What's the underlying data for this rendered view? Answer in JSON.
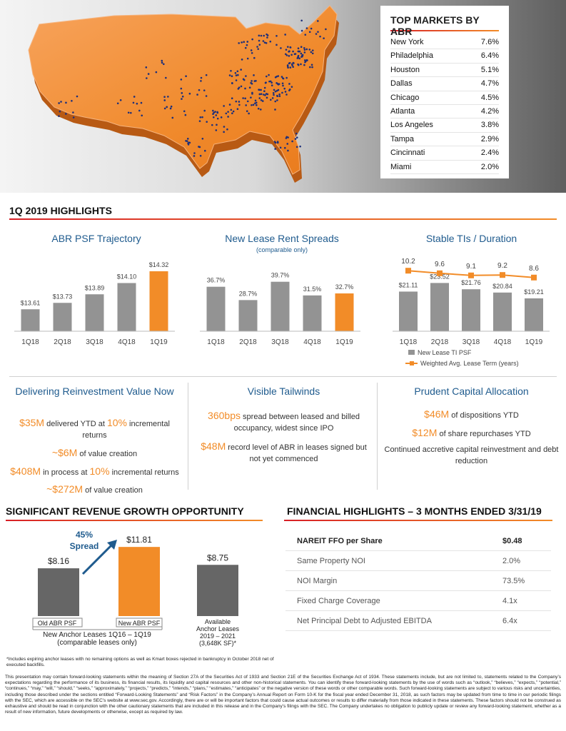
{
  "top_markets": {
    "title": "TOP MARKETS BY ABR",
    "rows": [
      {
        "market": "New York",
        "pct": "7.6%"
      },
      {
        "market": "Philadelphia",
        "pct": "6.4%"
      },
      {
        "market": "Houston",
        "pct": "5.1%"
      },
      {
        "market": "Dallas",
        "pct": "4.7%"
      },
      {
        "market": "Chicago",
        "pct": "4.5%"
      },
      {
        "market": "Atlanta",
        "pct": "4.2%"
      },
      {
        "market": "Los Angeles",
        "pct": "3.8%"
      },
      {
        "market": "Tampa",
        "pct": "2.9%"
      },
      {
        "market": "Cincinnati",
        "pct": "2.4%"
      },
      {
        "market": "Miami",
        "pct": "2.0%"
      }
    ]
  },
  "highlights": {
    "title": "1Q 2019 HIGHLIGHTS"
  },
  "chart_data": [
    {
      "type": "bar",
      "title": "ABR PSF Trajectory",
      "categories": [
        "1Q18",
        "2Q18",
        "3Q18",
        "4Q18",
        "1Q19"
      ],
      "values": [
        13.61,
        13.73,
        13.89,
        14.1,
        14.32
      ],
      "labels": [
        "$13.61",
        "$13.73",
        "$13.89",
        "$14.10",
        "$14.32"
      ],
      "highlight_index": 4,
      "ylim": [
        13.2,
        14.4
      ]
    },
    {
      "type": "bar",
      "title": "New Lease Rent Spreads",
      "subtitle": "(comparable only)",
      "categories": [
        "1Q18",
        "2Q18",
        "3Q18",
        "4Q18",
        "1Q19"
      ],
      "values": [
        36.7,
        28.7,
        39.7,
        31.5,
        32.7
      ],
      "labels": [
        "36.7%",
        "28.7%",
        "39.7%",
        "31.5%",
        "32.7%"
      ],
      "highlight_index": 4,
      "ylim": [
        10,
        40
      ]
    },
    {
      "type": "bar",
      "title": "Stable TIs / Duration",
      "categories": [
        "1Q18",
        "2Q18",
        "3Q18",
        "4Q18",
        "1Q19"
      ],
      "series": [
        {
          "name": "New Lease TI PSF",
          "type": "bar",
          "values": [
            21.11,
            23.52,
            21.76,
            20.84,
            19.21
          ],
          "labels": [
            "$21.11",
            "$23.52",
            "$21.76",
            "$20.84",
            "$19.21"
          ]
        },
        {
          "name": "Weighted Avg. Lease Term (years)",
          "type": "line",
          "values": [
            10.2,
            9.6,
            9.1,
            9.2,
            8.6
          ],
          "labels": [
            "10.2",
            "9.6",
            "9.1",
            "9.2",
            "8.6"
          ]
        }
      ]
    },
    {
      "type": "bar",
      "title": "SIGNIFICANT REVENUE GROWTH OPPORTUNITY",
      "categories": [
        "Old ABR PSF",
        "New ABR PSF",
        "Available Anchor Leases 2019 – 2021 (3,648K SF)*"
      ],
      "values": [
        8.16,
        11.81,
        8.75
      ],
      "labels": [
        "$8.16",
        "$11.81",
        "$8.75"
      ],
      "annotation": "45% Spread",
      "group_label": "New Anchor Leases 1Q16 – 1Q19 (comparable leases only)"
    }
  ],
  "colors": {
    "orange": "#f28c28",
    "gray": "#939393",
    "dark_gray": "#666666",
    "blue": "#1f5b8e",
    "red": "#d71f26"
  },
  "reinvestment": {
    "title": "Delivering Reinvestment Value Now",
    "s1_hl": "$35M",
    "s1_a": " delivered YTD at ",
    "s1_hl2": "10%",
    "s1_b": " incremental returns",
    "s2_hl": "~$6M",
    "s2_a": " of value creation",
    "s3_hl": "$408M",
    "s3_a": " in process at ",
    "s3_hl2": "10%",
    "s3_b": " incremental returns",
    "s4_hl": "~$272M",
    "s4_a": " of value creation"
  },
  "tailwinds": {
    "title": "Visible Tailwinds",
    "s1_hl": "360bps",
    "s1_a": " spread between leased and billed occupancy, widest since IPO",
    "s2_hl": "$48M",
    "s2_a": " record level of ABR in leases signed but not yet commenced"
  },
  "capital": {
    "title": "Prudent Capital Allocation",
    "s1_hl": "$46M",
    "s1_a": " of dispositions YTD",
    "s2_hl": "$12M",
    "s2_a": " of share repurchases YTD",
    "s3": "Continued accretive capital reinvestment and debt reduction"
  },
  "revenue": {
    "footnote": "*Includes expiring anchor leases with no remaining options as well as Kmart boxes rejected in bankruptcy in October 2018 net of executed backfills."
  },
  "financial": {
    "title": "FINANCIAL HIGHLIGHTS – 3 MONTHS ENDED 3/31/19",
    "rows": [
      {
        "label": "NAREIT FFO per Share",
        "value": "$0.48"
      },
      {
        "label": "Same Property NOI",
        "value": "2.0%"
      },
      {
        "label": "NOI Margin",
        "value": "73.5%"
      },
      {
        "label": "Fixed Charge Coverage",
        "value": "4.1x"
      },
      {
        "label": "Net Principal Debt to Adjusted EBITDA",
        "value": "6.4x"
      }
    ]
  },
  "disclaimer": "This presentation may contain forward-looking statements within the meaning of Section 27A of the Securities Act of 1933 and Section 21E of the Securities Exchange Act of 1934. These statements include, but are not limited to, statements related to the Company’s expectations regarding the performance of its business, its financial results, its liquidity and capital resources and other non-historical statements. You can identify these forward-looking statements by the use of words such as “outlook,” “believes,” “expects,” “potential,” “continues,” “may,” “will,” “should,” “seeks,” “approximately,” “projects,” “predicts,” “intends,” “plans,” “estimates,” “anticipates” or the negative version of these words or other comparable words. Such forward-looking statements are subject to various risks and uncertainties, including those described under the sections entitled “Forward-Looking Statements” and “Risk Factors” in the Company’s Annual Report on Form 10-K for the fiscal year ended December 31, 2018, as such factors may be updated from time to time in our periodic filings with the SEC, which are accessible on the SEC’s website at www.sec.gov. Accordingly, there are or will be important factors that could cause actual outcomes or results to differ materially from those indicated in these statements. These factors should not be construed as exhaustive and should be read in conjunction with the other cautionary statements that are included in this release and in the Company’s filings with the SEC. The Company undertakes no obligation to publicly update or review any forward-looking statement, whether as a result of new information, future developments or otherwise, except as required by law."
}
